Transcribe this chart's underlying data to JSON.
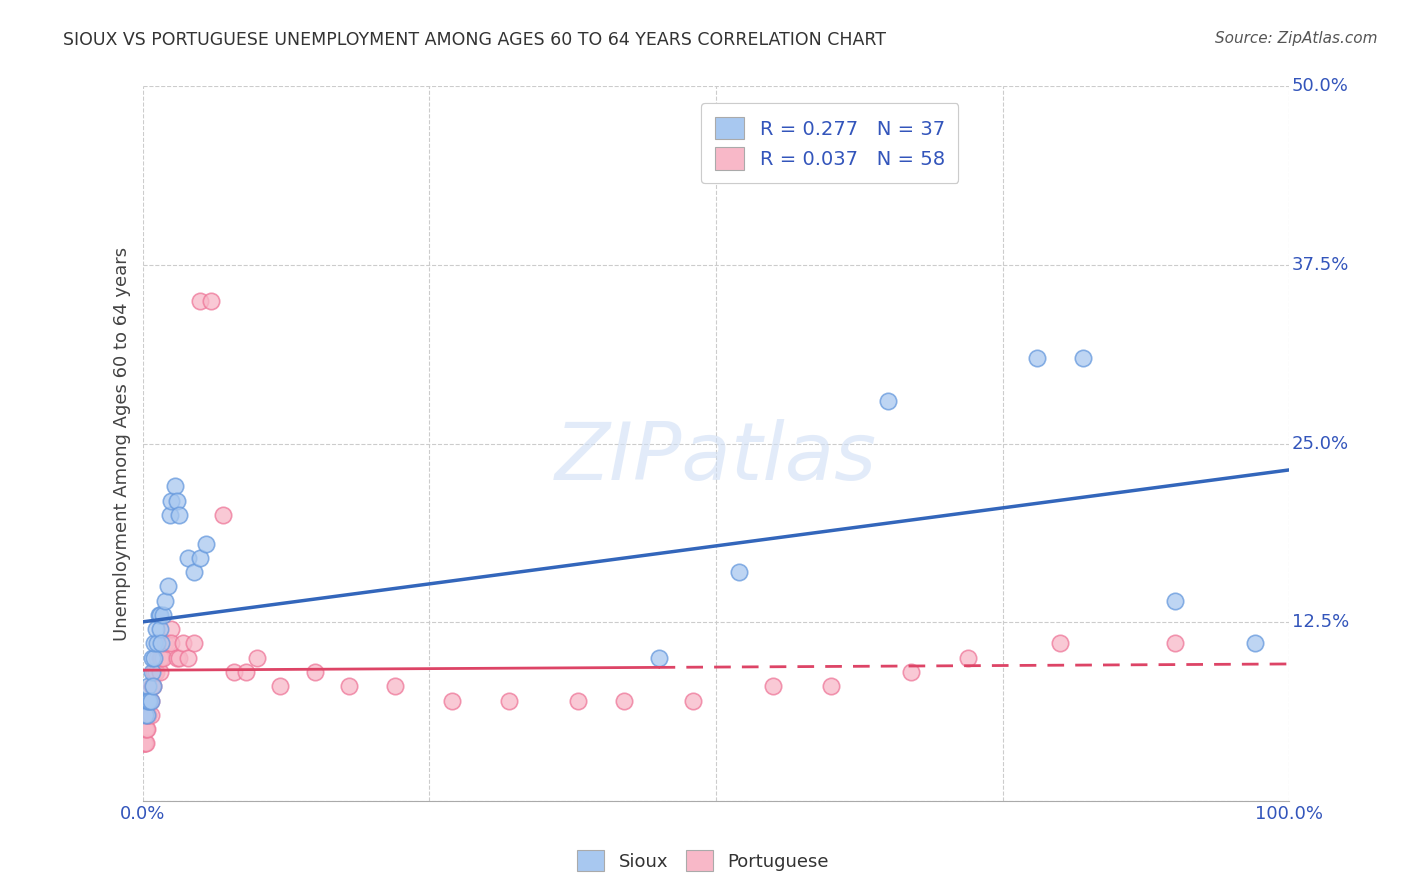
{
  "title": "SIOUX VS PORTUGUESE UNEMPLOYMENT AMONG AGES 60 TO 64 YEARS CORRELATION CHART",
  "source": "Source: ZipAtlas.com",
  "ylabel": "Unemployment Among Ages 60 to 64 years",
  "xlim": [
    0,
    1.0
  ],
  "ylim": [
    0,
    0.5
  ],
  "xticks": [
    0.0,
    0.25,
    0.5,
    0.75,
    1.0
  ],
  "xticklabels": [
    "0.0%",
    "",
    "",
    "",
    "100.0%"
  ],
  "yticks": [
    0.0,
    0.125,
    0.25,
    0.375,
    0.5
  ],
  "yticklabels": [
    "",
    "12.5%",
    "25.0%",
    "37.5%",
    "50.0%"
  ],
  "sioux_color": "#A8C8F0",
  "sioux_edge_color": "#6699DD",
  "portuguese_color": "#F8B8C8",
  "portuguese_edge_color": "#EE7799",
  "sioux_line_color": "#3366BB",
  "portuguese_line_color": "#DD4466",
  "sioux_R": 0.277,
  "sioux_N": 37,
  "portuguese_R": 0.037,
  "portuguese_N": 58,
  "watermark": "ZIPatlas",
  "legend_labels": [
    "Sioux",
    "Portuguese"
  ],
  "sioux_x": [
    0.002,
    0.003,
    0.004,
    0.005,
    0.005,
    0.006,
    0.007,
    0.008,
    0.008,
    0.009,
    0.01,
    0.01,
    0.012,
    0.013,
    0.014,
    0.015,
    0.015,
    0.016,
    0.018,
    0.02,
    0.022,
    0.024,
    0.025,
    0.028,
    0.03,
    0.032,
    0.04,
    0.045,
    0.05,
    0.055,
    0.45,
    0.52,
    0.65,
    0.78,
    0.82,
    0.9,
    0.97
  ],
  "sioux_y": [
    0.06,
    0.07,
    0.06,
    0.07,
    0.08,
    0.07,
    0.07,
    0.09,
    0.1,
    0.08,
    0.1,
    0.11,
    0.12,
    0.11,
    0.13,
    0.13,
    0.12,
    0.11,
    0.13,
    0.14,
    0.15,
    0.2,
    0.21,
    0.22,
    0.21,
    0.2,
    0.17,
    0.16,
    0.17,
    0.18,
    0.1,
    0.16,
    0.28,
    0.31,
    0.31,
    0.14,
    0.11
  ],
  "portuguese_x": [
    0.001,
    0.001,
    0.002,
    0.002,
    0.002,
    0.003,
    0.003,
    0.003,
    0.004,
    0.004,
    0.005,
    0.005,
    0.005,
    0.006,
    0.006,
    0.007,
    0.007,
    0.008,
    0.008,
    0.009,
    0.01,
    0.01,
    0.012,
    0.013,
    0.015,
    0.015,
    0.016,
    0.018,
    0.02,
    0.022,
    0.025,
    0.025,
    0.03,
    0.032,
    0.035,
    0.04,
    0.045,
    0.05,
    0.06,
    0.07,
    0.08,
    0.09,
    0.1,
    0.12,
    0.15,
    0.18,
    0.22,
    0.27,
    0.32,
    0.38,
    0.42,
    0.48,
    0.55,
    0.6,
    0.67,
    0.72,
    0.8,
    0.9
  ],
  "portuguese_y": [
    0.04,
    0.04,
    0.04,
    0.05,
    0.05,
    0.05,
    0.04,
    0.05,
    0.05,
    0.06,
    0.06,
    0.06,
    0.07,
    0.07,
    0.07,
    0.06,
    0.07,
    0.08,
    0.08,
    0.08,
    0.09,
    0.09,
    0.09,
    0.1,
    0.1,
    0.09,
    0.1,
    0.1,
    0.11,
    0.11,
    0.12,
    0.11,
    0.1,
    0.1,
    0.11,
    0.1,
    0.11,
    0.35,
    0.35,
    0.2,
    0.09,
    0.09,
    0.1,
    0.08,
    0.09,
    0.08,
    0.08,
    0.07,
    0.07,
    0.07,
    0.07,
    0.07,
    0.08,
    0.08,
    0.09,
    0.1,
    0.11,
    0.11
  ]
}
